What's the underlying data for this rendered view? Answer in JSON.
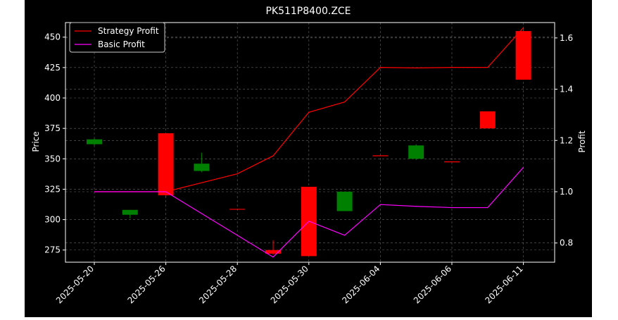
{
  "chart_data": {
    "type": "candlestick",
    "title": "PK511P8400.ZCE",
    "xlabel": "",
    "ylabel": "Price",
    "y2label": "Profit",
    "ylim": [
      265,
      462
    ],
    "y2lim": [
      0.725,
      1.66
    ],
    "yticks": [
      275,
      300,
      325,
      350,
      375,
      400,
      425,
      450
    ],
    "y2ticks": [
      0.8,
      1.0,
      1.2,
      1.4,
      1.6
    ],
    "y2ticklabels": [
      "0.8",
      "1.0",
      "1.2",
      "1.4",
      "1.6"
    ],
    "grid": true,
    "legend_position": "top-left",
    "xtick_labels": [
      "2025-05-20",
      "2025-05-26",
      "2025-05-28",
      "2025-05-30",
      "2025-06-04",
      "2025-06-06",
      "2025-06-11"
    ],
    "xtick_index": [
      0,
      2,
      4,
      6,
      8,
      10,
      12
    ],
    "candles": [
      {
        "open": 362,
        "high": 367,
        "low": 361,
        "close": 366
      },
      {
        "open": 304,
        "high": 308,
        "low": 301,
        "close": 308
      },
      {
        "open": 371,
        "high": 371,
        "low": 318,
        "close": 320
      },
      {
        "open": 340,
        "high": 355,
        "low": 339,
        "close": 346
      },
      {
        "open": 308.5,
        "high": 308.5,
        "low": 308.5,
        "close": 308.5
      },
      {
        "open": 275,
        "high": 283,
        "low": 271,
        "close": 272
      },
      {
        "open": 327,
        "high": 327,
        "low": 270,
        "close": 270
      },
      {
        "open": 307,
        "high": 323,
        "low": 307,
        "close": 323
      },
      {
        "open": 352.5,
        "high": 352.5,
        "low": 352.5,
        "close": 352.5
      },
      {
        "open": 350,
        "high": 362,
        "low": 349,
        "close": 361
      },
      {
        "open": 347.5,
        "high": 347.5,
        "low": 347.5,
        "close": 347.5
      },
      {
        "open": 389,
        "high": 389,
        "low": 375,
        "close": 375
      },
      {
        "open": 455,
        "high": 458,
        "low": 415,
        "close": 415
      }
    ],
    "series": [
      {
        "name": "Strategy Profit",
        "color": "#ff0000",
        "x_index": [
          0,
          2,
          4,
          5,
          6,
          7,
          8,
          9,
          10,
          11,
          12
        ],
        "values": [
          1.0,
          1.0,
          1.07,
          1.14,
          1.31,
          1.35,
          1.485,
          1.483,
          1.485,
          1.485,
          1.64
        ]
      },
      {
        "name": "Basic Profit",
        "color": "#ff00ff",
        "x_index": [
          0,
          2,
          5,
          6,
          7,
          8,
          9,
          10,
          11,
          12
        ],
        "values": [
          1.0,
          1.0,
          0.745,
          0.885,
          0.83,
          0.95,
          0.943,
          0.938,
          0.938,
          1.095
        ]
      }
    ],
    "colors": {
      "up": "#008000",
      "down": "#ff0000",
      "background": "#000000",
      "grid": "#808080",
      "text": "#ffffff"
    }
  }
}
